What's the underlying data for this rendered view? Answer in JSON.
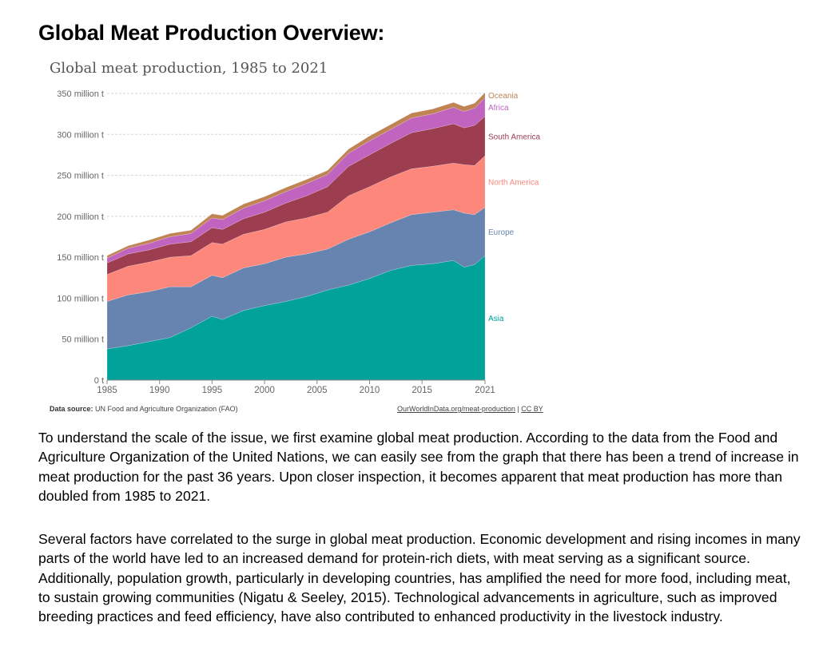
{
  "page": {
    "title": "Global Meat Production Overview:"
  },
  "chart_data": {
    "type": "area",
    "stacked": true,
    "title": "Global meat production, 1985 to 2021",
    "xlabel": "",
    "ylabel": "",
    "xlim": [
      1985,
      2021
    ],
    "ylim": [
      0,
      350
    ],
    "y_ticks": [
      0,
      50,
      100,
      150,
      200,
      250,
      300,
      350
    ],
    "y_tick_labels": [
      "0 t",
      "50 million t",
      "100 million t",
      "150 million t",
      "200 million t",
      "250 million t",
      "300 million t",
      "350 million t"
    ],
    "x_ticks": [
      1985,
      1990,
      1995,
      2000,
      2005,
      2010,
      2015,
      2021
    ],
    "x_tick_labels": [
      "1985",
      "1990",
      "1995",
      "2000",
      "2005",
      "2010",
      "2015",
      "2021"
    ],
    "grid": "horizontal dashed",
    "legend_placement": "inline right labels",
    "x": [
      1985,
      1987,
      1989,
      1991,
      1993,
      1995,
      1996,
      1998,
      2000,
      2002,
      2004,
      2006,
      2008,
      2010,
      2012,
      2014,
      2016,
      2018,
      2019,
      2020,
      2021
    ],
    "series": [
      {
        "name": "Asia",
        "color": "#00a29a",
        "values": [
          38,
          42,
          47,
          52,
          64,
          78,
          74,
          85,
          91,
          96,
          102,
          110,
          116,
          124,
          134,
          140,
          142,
          146,
          138,
          141,
          152
        ]
      },
      {
        "name": "Europe",
        "color": "#6784b0",
        "values": [
          58,
          62,
          61,
          62,
          50,
          50,
          51,
          52,
          51,
          54,
          52,
          50,
          56,
          57,
          58,
          62,
          63,
          62,
          66,
          61,
          59
        ]
      },
      {
        "name": "North America",
        "color": "#fe877b",
        "values": [
          33,
          35,
          36,
          36,
          38,
          40,
          41,
          41,
          42,
          43,
          44,
          45,
          53,
          55,
          56,
          56,
          56,
          57,
          59,
          60,
          63
        ]
      },
      {
        "name": "South America",
        "color": "#9c3d50",
        "values": [
          14,
          15,
          15,
          16,
          17,
          18,
          18,
          19,
          21,
          23,
          27,
          31,
          36,
          39,
          41,
          44,
          46,
          48,
          45,
          49,
          48
        ]
      },
      {
        "name": "Africa",
        "color": "#c164c0",
        "values": [
          6,
          7,
          8,
          9,
          10,
          12,
          12,
          13,
          14,
          14,
          15,
          15,
          16,
          17,
          17,
          18,
          18,
          20,
          20,
          21,
          23
        ]
      },
      {
        "name": "Oceania",
        "color": "#c08454",
        "values": [
          3,
          3,
          4,
          4,
          4,
          5,
          5,
          5,
          5,
          5,
          5,
          5,
          5,
          6,
          6,
          6,
          6,
          6,
          6,
          6,
          6
        ]
      }
    ],
    "source_label": "Data source:",
    "source_text": "UN Food and Agriculture Organization (FAO)",
    "credit_link": "OurWorldInData.org/meat-production",
    "credit_separator": "|",
    "credit_license": "CC BY"
  },
  "paragraphs": [
    "To understand the scale of the issue, we first examine global meat production. According to the data from the Food and Agriculture Organization of the United Nations, we can easily see from the graph that there has been a trend of increase in meat production for the past 36 years. Upon closer inspection, it becomes apparent that meat production has more than doubled from 1985 to 2021.",
    "Several factors have correlated to the surge in global meat production. Economic development and rising incomes in many parts of the world have led to an increased demand for protein-rich diets, with meat serving as a significant source. Additionally, population growth, particularly in developing countries, has amplified the need for more food, including meat, to sustain growing communities (Nigatu & Seeley, 2015). Technological advancements in agriculture, such as improved breeding practices and feed efficiency, have also contributed to enhanced productivity in the livestock industry."
  ]
}
